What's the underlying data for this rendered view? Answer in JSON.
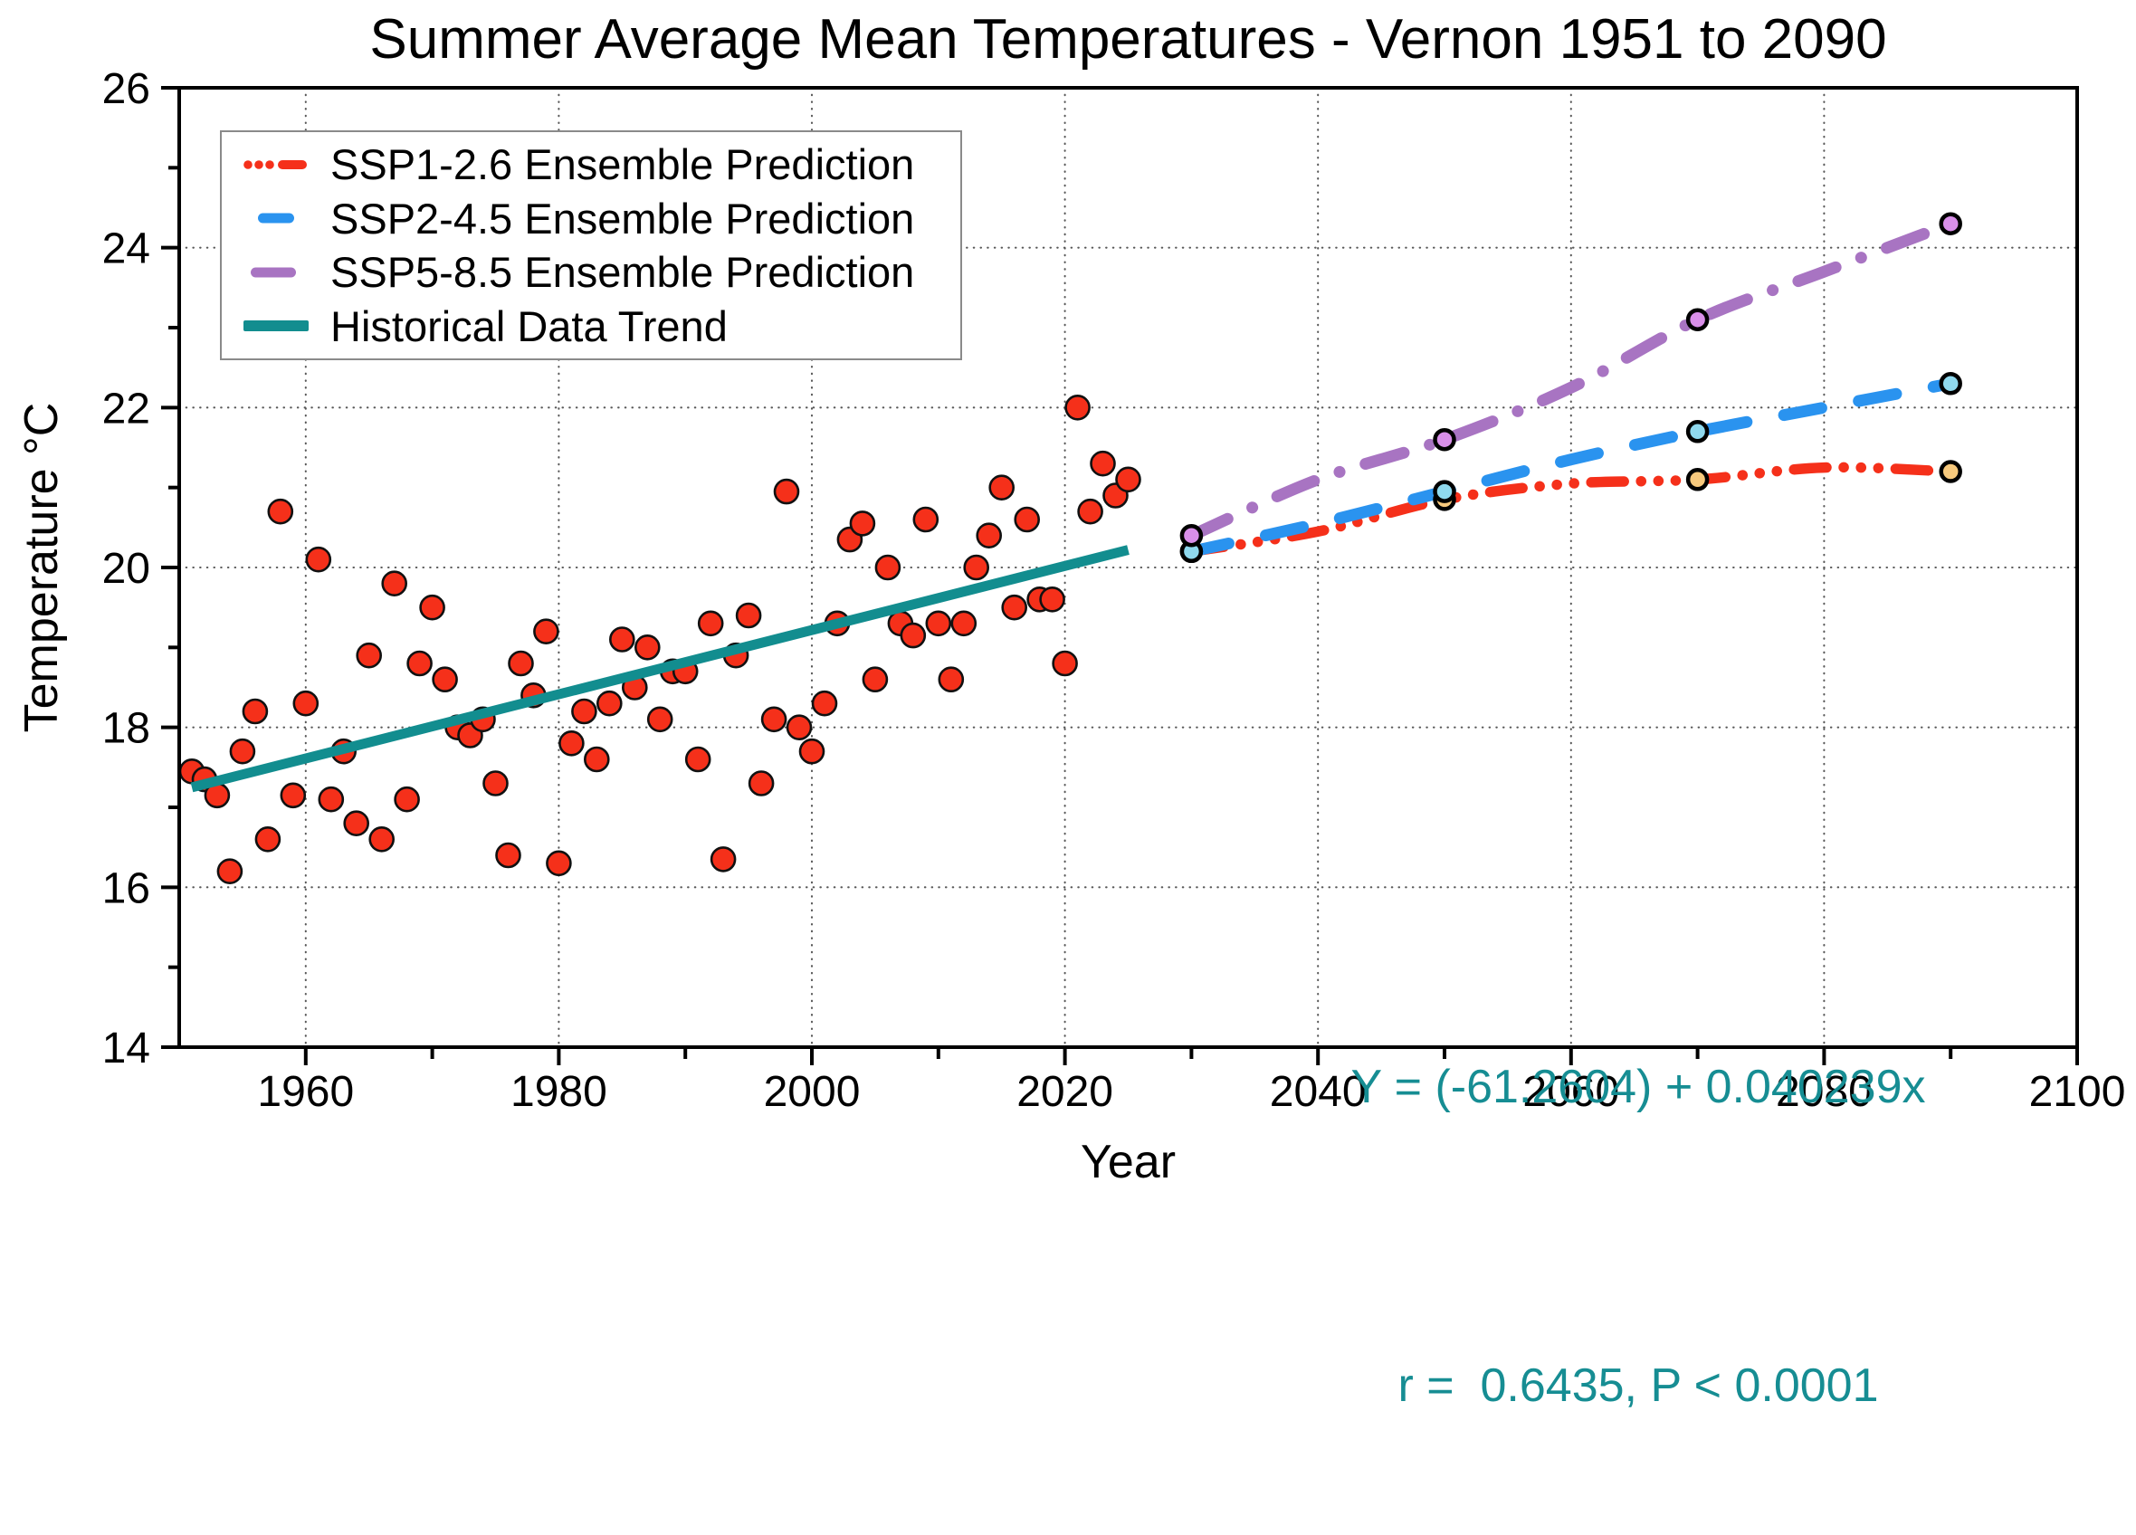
{
  "title": "Summer Average Mean Temperatures - Vernon 1951 to 2090",
  "chart_data": {
    "type": "scatter",
    "title": "Summer Average Mean Temperatures - Vernon 1951 to 2090",
    "xlabel": "Year",
    "ylabel": "Temperature °C",
    "xlim": [
      1950,
      2100
    ],
    "ylim": [
      14,
      26
    ],
    "x_major_ticks": [
      1960,
      1980,
      2000,
      2020,
      2040,
      2060,
      2080,
      2100
    ],
    "x_minor_ticks": [
      1970,
      1990,
      2010,
      2030,
      2050,
      2070,
      2090
    ],
    "y_major_ticks": [
      14,
      16,
      18,
      20,
      22,
      24,
      26
    ],
    "y_minor_ticks": [
      15,
      17,
      19,
      21,
      23,
      25
    ],
    "x_gridlines": [
      1960,
      1980,
      2000,
      2020,
      2040,
      2060,
      2080
    ],
    "y_gridlines": [
      16,
      18,
      20,
      22,
      24
    ],
    "grid": true,
    "legend_position": "upper-left",
    "colors": {
      "scatter_fill": "#f5301a",
      "scatter_edge": "#111111",
      "trend_teal": "#128d8f",
      "ssp1_red": "#f5301a",
      "ssp2_blue": "#2a93ef",
      "ssp5_purple": "#a874c2",
      "marker_yellow": "#f7c97d",
      "marker_cyan": "#8fd9ee",
      "marker_violet": "#d98fe9",
      "annotation_teal": "#168d93",
      "gridline_gray": "#3c3c3c"
    },
    "historical_scatter": {
      "name": "Historical Summer Mean Temperatures",
      "points": [
        [
          1951,
          17.45
        ],
        [
          1952,
          17.35
        ],
        [
          1953,
          17.15
        ],
        [
          1954,
          16.2
        ],
        [
          1955,
          17.7
        ],
        [
          1956,
          18.2
        ],
        [
          1957,
          16.6
        ],
        [
          1958,
          20.7
        ],
        [
          1959,
          17.15
        ],
        [
          1960,
          18.3
        ],
        [
          1961,
          20.1
        ],
        [
          1962,
          17.1
        ],
        [
          1963,
          17.7
        ],
        [
          1964,
          16.8
        ],
        [
          1965,
          18.9
        ],
        [
          1966,
          16.6
        ],
        [
          1967,
          19.8
        ],
        [
          1968,
          17.1
        ],
        [
          1969,
          18.8
        ],
        [
          1970,
          19.5
        ],
        [
          1971,
          18.6
        ],
        [
          1972,
          18.0
        ],
        [
          1973,
          17.9
        ],
        [
          1974,
          18.1
        ],
        [
          1975,
          17.3
        ],
        [
          1976,
          16.4
        ],
        [
          1977,
          18.8
        ],
        [
          1978,
          18.4
        ],
        [
          1979,
          19.2
        ],
        [
          1980,
          16.3
        ],
        [
          1981,
          17.8
        ],
        [
          1982,
          18.2
        ],
        [
          1983,
          17.6
        ],
        [
          1984,
          18.3
        ],
        [
          1985,
          19.1
        ],
        [
          1986,
          18.5
        ],
        [
          1987,
          19.0
        ],
        [
          1988,
          18.1
        ],
        [
          1989,
          18.7
        ],
        [
          1990,
          18.7
        ],
        [
          1991,
          17.6
        ],
        [
          1992,
          19.3
        ],
        [
          1993,
          16.35
        ],
        [
          1994,
          18.9
        ],
        [
          1995,
          19.4
        ],
        [
          1996,
          17.3
        ],
        [
          1997,
          18.1
        ],
        [
          1998,
          20.95
        ],
        [
          1999,
          18.0
        ],
        [
          2000,
          17.7
        ],
        [
          2001,
          18.3
        ],
        [
          2002,
          19.3
        ],
        [
          2003,
          20.35
        ],
        [
          2004,
          20.55
        ],
        [
          2005,
          18.6
        ],
        [
          2006,
          20.0
        ],
        [
          2007,
          19.3
        ],
        [
          2008,
          19.15
        ],
        [
          2009,
          20.6
        ],
        [
          2010,
          19.3
        ],
        [
          2011,
          18.6
        ],
        [
          2012,
          19.3
        ],
        [
          2013,
          20.0
        ],
        [
          2014,
          20.4
        ],
        [
          2015,
          21.0
        ],
        [
          2016,
          19.5
        ],
        [
          2017,
          20.6
        ],
        [
          2018,
          19.6
        ],
        [
          2019,
          19.6
        ],
        [
          2020,
          18.8
        ],
        [
          2021,
          22.0
        ],
        [
          2022,
          20.7
        ],
        [
          2023,
          21.3
        ],
        [
          2024,
          20.9
        ],
        [
          2025,
          21.1
        ]
      ]
    },
    "trend": {
      "name": "Historical Data Trend",
      "points": [
        [
          1951,
          17.25
        ],
        [
          2025,
          20.22
        ]
      ]
    },
    "series": [
      {
        "key": "ssp1",
        "name": "SSP1-2.6 Ensemble Prediction",
        "dash_style": "dash-dot-dot-dot",
        "points": [
          [
            2030,
            20.2
          ],
          [
            2040,
            20.45
          ],
          [
            2050,
            20.85
          ],
          [
            2060,
            21.05
          ],
          [
            2070,
            21.1
          ],
          [
            2080,
            21.25
          ],
          [
            2090,
            21.2
          ]
        ],
        "marker_points": [
          [
            2030,
            20.2
          ],
          [
            2050,
            20.85
          ],
          [
            2070,
            21.1
          ],
          [
            2090,
            21.2
          ]
        ]
      },
      {
        "key": "ssp2",
        "name": "SSP2-4.5 Ensemble Prediction",
        "dash_style": "dashed",
        "points": [
          [
            2030,
            20.2
          ],
          [
            2040,
            20.55
          ],
          [
            2050,
            20.95
          ],
          [
            2060,
            21.35
          ],
          [
            2070,
            21.7
          ],
          [
            2080,
            22.0
          ],
          [
            2090,
            22.3
          ]
        ],
        "marker_points": [
          [
            2030,
            20.2
          ],
          [
            2050,
            20.95
          ],
          [
            2070,
            21.7
          ],
          [
            2090,
            22.3
          ]
        ]
      },
      {
        "key": "ssp5",
        "name": "SSP5-8.5 Ensemble Prediction",
        "dash_style": "dash-dot",
        "points": [
          [
            2030,
            20.4
          ],
          [
            2040,
            21.1
          ],
          [
            2050,
            21.6
          ],
          [
            2060,
            22.25
          ],
          [
            2070,
            23.1
          ],
          [
            2080,
            23.7
          ],
          [
            2090,
            24.3
          ]
        ],
        "marker_points": [
          [
            2030,
            20.4
          ],
          [
            2050,
            21.6
          ],
          [
            2070,
            23.1
          ],
          [
            2090,
            24.3
          ]
        ]
      }
    ],
    "annotation": {
      "line1": "Y = (-61.2604) + 0.040239x",
      "line2": "r =  0.6435, P < 0.0001"
    },
    "legend": {
      "items": [
        {
          "key": "ssp1",
          "label": "SSP1-2.6 Ensemble Prediction"
        },
        {
          "key": "ssp2",
          "label": "SSP2-4.5 Ensemble Prediction"
        },
        {
          "key": "ssp5",
          "label": "SSP5-8.5 Ensemble Prediction"
        },
        {
          "key": "hist",
          "label": "Historical Data Trend"
        }
      ]
    }
  }
}
